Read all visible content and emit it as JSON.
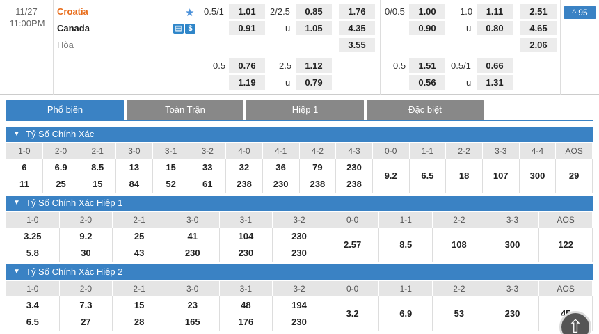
{
  "match": {
    "date": "11/27",
    "time": "11:00PM",
    "home": "Croatia",
    "away": "Canada",
    "draw": "Hòa",
    "more_count": "95",
    "more_label": "^ 95"
  },
  "odds_top": {
    "ft_hdp": {
      "line1": "0.5/1",
      "home": "1.01",
      "away": "0.91"
    },
    "ft_ou": {
      "line1": "2/2.5",
      "over": "0.85",
      "u": "u",
      "under": "1.05"
    },
    "ft_1x2": {
      "h": "1.76",
      "a": "4.35",
      "d": "3.55"
    },
    "h1_hdp": {
      "line1": "0/0.5",
      "home": "1.00",
      "away": "0.90"
    },
    "h1_ou": {
      "line1": "1.0",
      "over": "1.11",
      "u": "u",
      "under": "0.80"
    },
    "h1_1x2": {
      "h": "2.51",
      "a": "4.65",
      "d": "2.06"
    },
    "ft_hdp2": {
      "line1": "0.5",
      "home": "0.76",
      "away": "1.19"
    },
    "ft_ou2": {
      "line1": "2.5",
      "over": "1.12",
      "u": "u",
      "under": "0.79"
    },
    "h1_hdp2": {
      "line1": "0.5",
      "home": "1.51",
      "away": "0.56"
    },
    "h1_ou2": {
      "line1": "0.5/1",
      "over": "0.66",
      "u": "u",
      "under": "1.31"
    }
  },
  "tabs": [
    "Phổ biến",
    "Toàn Trận",
    "Hiệp 1",
    "Đặc biệt"
  ],
  "sections": [
    {
      "title": "Tỷ Số Chính Xác",
      "scores": [
        "1-0",
        "2-0",
        "2-1",
        "3-0",
        "3-1",
        "3-2",
        "4-0",
        "4-1",
        "4-2",
        "4-3",
        "0-0",
        "1-1",
        "2-2",
        "3-3",
        "4-4",
        "AOS"
      ],
      "top": [
        "6",
        "6.9",
        "8.5",
        "13",
        "15",
        "33",
        "32",
        "36",
        "79",
        "230",
        "9.2",
        "6.5",
        "18",
        "107",
        "300",
        "29"
      ],
      "bottom": [
        "11",
        "25",
        "15",
        "84",
        "52",
        "61",
        "238",
        "230",
        "238",
        "238",
        "",
        "",
        "",
        "",
        "",
        ""
      ]
    },
    {
      "title": "Tỷ Số Chính Xác Hiệp 1",
      "scores": [
        "1-0",
        "2-0",
        "2-1",
        "3-0",
        "3-1",
        "3-2",
        "0-0",
        "1-1",
        "2-2",
        "3-3",
        "AOS"
      ],
      "top": [
        "3.25",
        "9.2",
        "25",
        "41",
        "104",
        "230",
        "2.57",
        "8.5",
        "108",
        "300",
        "122"
      ],
      "bottom": [
        "5.8",
        "30",
        "43",
        "230",
        "230",
        "230",
        "",
        "",
        "",
        "",
        ""
      ]
    },
    {
      "title": "Tỷ Số Chính Xác Hiệp 2",
      "scores": [
        "1-0",
        "2-0",
        "2-1",
        "3-0",
        "3-1",
        "3-2",
        "0-0",
        "1-1",
        "2-2",
        "3-3",
        "AOS"
      ],
      "top": [
        "3.4",
        "7.3",
        "15",
        "23",
        "48",
        "194",
        "3.2",
        "6.9",
        "53",
        "230",
        "45"
      ],
      "bottom": [
        "6.5",
        "27",
        "28",
        "165",
        "176",
        "230",
        "",
        "",
        "",
        "",
        ""
      ]
    }
  ],
  "colors": {
    "accent": "#3a82c4",
    "home": "#e86c1a",
    "tab_inactive": "#888888"
  },
  "icons": [
    "star-icon",
    "stats-icon",
    "dollar-icon",
    "chevron-down-icon",
    "arrow-up-icon"
  ]
}
